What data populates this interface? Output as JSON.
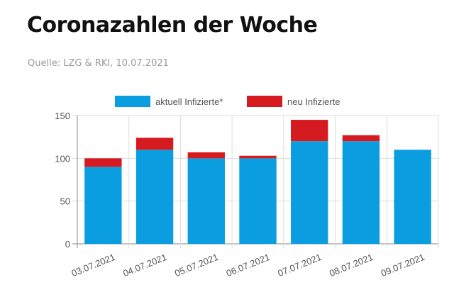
{
  "header": {
    "title": "Coronazahlen der Woche",
    "source": "Quelle: LZG & RKI, 10.07.2021"
  },
  "chart_data": {
    "type": "bar",
    "stacked": true,
    "categories": [
      "03.07.2021",
      "04.07.2021",
      "05.07.2021",
      "06.07.2021",
      "07.07.2021",
      "08.07.2021",
      "09.07.2021"
    ],
    "series": [
      {
        "name": "aktuell Infizierte*",
        "color": "#0a9ee0",
        "values": [
          90,
          110,
          100,
          100,
          120,
          120,
          110
        ]
      },
      {
        "name": "neu Infizierte",
        "color": "#d51a20",
        "values": [
          10,
          14,
          7,
          3,
          25,
          7,
          0
        ]
      }
    ],
    "yticks": [
      0,
      50,
      100,
      150
    ],
    "ylim": [
      0,
      150
    ],
    "grid": true,
    "legend": "top"
  }
}
